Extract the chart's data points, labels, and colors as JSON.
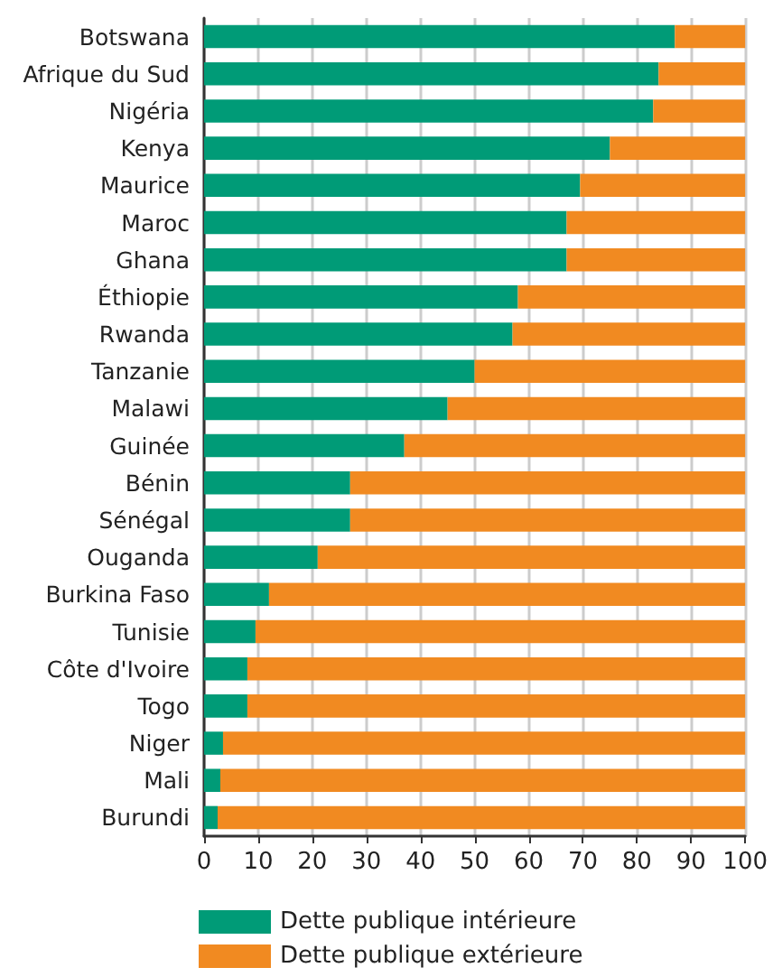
{
  "chart_data": {
    "type": "bar",
    "orientation": "horizontal",
    "stacked": true,
    "categories": [
      "Botswana",
      "Afrique du Sud",
      "Nigéria",
      "Kenya",
      "Maurice",
      "Maroc",
      "Ghana",
      "Éthiopie",
      "Rwanda",
      "Tanzanie",
      "Malawi",
      "Guinée",
      "Bénin",
      "Sénégal",
      "Ouganda",
      "Burkina Faso",
      "Tunisie",
      "Côte d'Ivoire",
      "Togo",
      "Niger",
      "Mali",
      "Burundi"
    ],
    "series": [
      {
        "name": "Dette publique intérieure",
        "color": "#009b77",
        "values": [
          87,
          84,
          83,
          75,
          69.5,
          67,
          67,
          58,
          57,
          50,
          45,
          37,
          27,
          27,
          21,
          12,
          9.5,
          8,
          8,
          3.5,
          3,
          2.5
        ]
      },
      {
        "name": "Dette publique extérieure",
        "color": "#f18a21",
        "values": [
          13,
          16,
          17,
          25,
          30.5,
          33,
          33,
          42,
          43,
          50,
          55,
          63,
          73,
          73,
          79,
          88,
          90.5,
          92,
          92,
          96.5,
          97,
          97.5
        ]
      }
    ],
    "xlim": [
      0,
      100
    ],
    "xticks": [
      0,
      10,
      20,
      30,
      40,
      50,
      60,
      70,
      80,
      90,
      100
    ],
    "grid": "x",
    "legend": "bottom"
  }
}
